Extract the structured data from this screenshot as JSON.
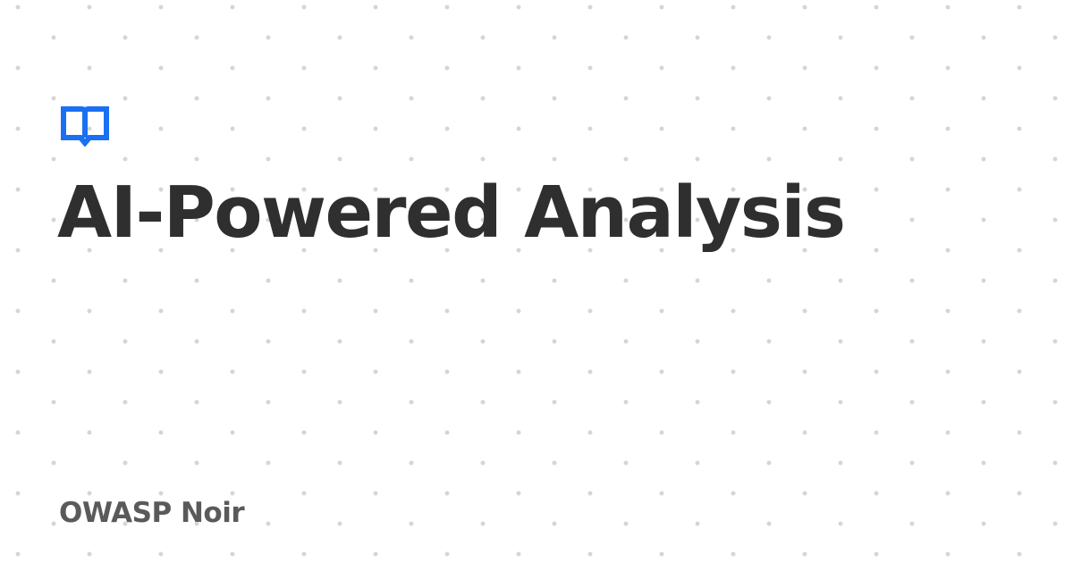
{
  "card": {
    "title": "AI-Powered Analysis",
    "site_name": "OWASP Noir",
    "logo_icon": "book-open-icon"
  },
  "colors": {
    "background": "#ffffff",
    "dot": "#d5d5d5",
    "title": "#2f2f2f",
    "site_name": "#5a5a5a",
    "accent": "#1a6ff2"
  }
}
